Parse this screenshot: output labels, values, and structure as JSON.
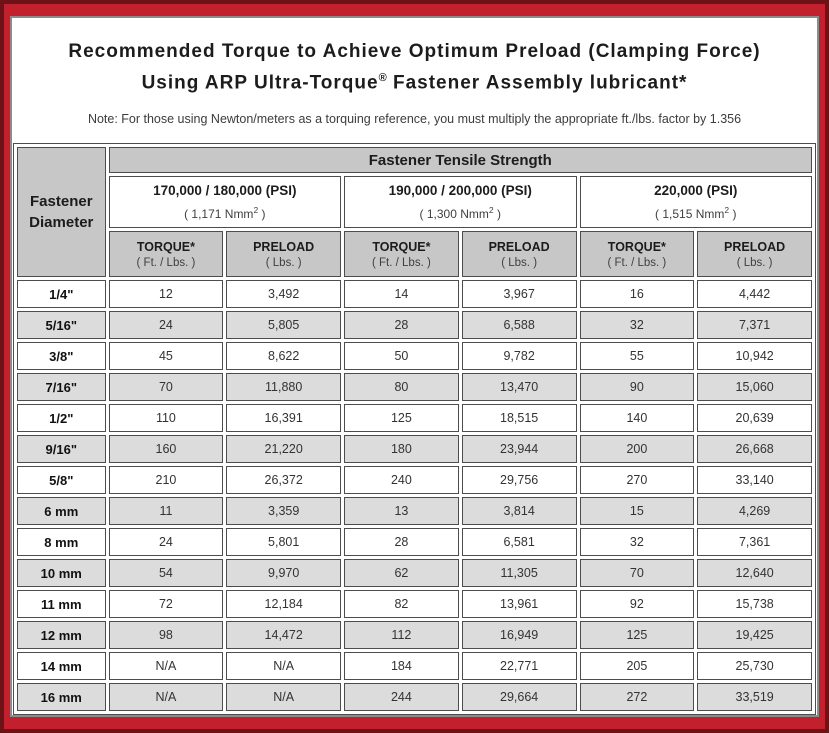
{
  "header": {
    "title_line1": "Recommended Torque to Achieve Optimum Preload (Clamping Force)",
    "title_line2_pre": "Using ARP Ultra-Torque",
    "title_line2_reg": "®",
    "title_line2_post": " Fastener Assembly lubricant*",
    "note": "Note: For those using Newton/meters as a torquing reference, you must multiply the appropriate ft./lbs. factor by 1.356"
  },
  "table": {
    "corner_line1": "Fastener",
    "corner_line2": "Diameter",
    "group_header": "Fastener Tensile Strength",
    "strength_groups": [
      {
        "psi": "170,000 / 180,000 (PSI)",
        "nmm_pre": "( 1,171 Nmm",
        "nmm_sup": "2",
        "nmm_post": " )"
      },
      {
        "psi": "190,000 / 200,000 (PSI)",
        "nmm_pre": "( 1,300 Nmm",
        "nmm_sup": "2",
        "nmm_post": " )"
      },
      {
        "psi": "220,000 (PSI)",
        "nmm_pre": "( 1,515 Nmm",
        "nmm_sup": "2",
        "nmm_post": " )"
      }
    ],
    "col_headers": {
      "torque_label": "TORQUE*",
      "torque_unit": "( Ft. / Lbs. )",
      "preload_label": "PRELOAD",
      "preload_unit": "( Lbs. )"
    },
    "rows": [
      {
        "diameter": "1/4\"",
        "values": [
          "12",
          "3,492",
          "14",
          "3,967",
          "16",
          "4,442"
        ]
      },
      {
        "diameter": "5/16\"",
        "values": [
          "24",
          "5,805",
          "28",
          "6,588",
          "32",
          "7,371"
        ]
      },
      {
        "diameter": "3/8\"",
        "values": [
          "45",
          "8,622",
          "50",
          "9,782",
          "55",
          "10,942"
        ]
      },
      {
        "diameter": "7/16\"",
        "values": [
          "70",
          "11,880",
          "80",
          "13,470",
          "90",
          "15,060"
        ]
      },
      {
        "diameter": "1/2\"",
        "values": [
          "110",
          "16,391",
          "125",
          "18,515",
          "140",
          "20,639"
        ]
      },
      {
        "diameter": "9/16\"",
        "values": [
          "160",
          "21,220",
          "180",
          "23,944",
          "200",
          "26,668"
        ]
      },
      {
        "diameter": "5/8\"",
        "values": [
          "210",
          "26,372",
          "240",
          "29,756",
          "270",
          "33,140"
        ]
      },
      {
        "diameter": "6 mm",
        "values": [
          "11",
          "3,359",
          "13",
          "3,814",
          "15",
          "4,269"
        ]
      },
      {
        "diameter": "8 mm",
        "values": [
          "24",
          "5,801",
          "28",
          "6,581",
          "32",
          "7,361"
        ]
      },
      {
        "diameter": "10 mm",
        "values": [
          "54",
          "9,970",
          "62",
          "11,305",
          "70",
          "12,640"
        ]
      },
      {
        "diameter": "11 mm",
        "values": [
          "72",
          "12,184",
          "82",
          "13,961",
          "92",
          "15,738"
        ]
      },
      {
        "diameter": "12 mm",
        "values": [
          "98",
          "14,472",
          "112",
          "16,949",
          "125",
          "19,425"
        ]
      },
      {
        "diameter": "14 mm",
        "values": [
          "N/A",
          "N/A",
          "184",
          "22,771",
          "205",
          "25,730"
        ]
      },
      {
        "diameter": "16 mm",
        "values": [
          "N/A",
          "N/A",
          "244",
          "29,664",
          "272",
          "33,519"
        ]
      }
    ]
  },
  "colors": {
    "frame_red": "#c2202c",
    "frame_dark_edge": "#6d1318",
    "header_gray": "#c7c7c7",
    "row_alt_gray": "#dcdcdc",
    "cell_border": "#4d4d4d"
  }
}
